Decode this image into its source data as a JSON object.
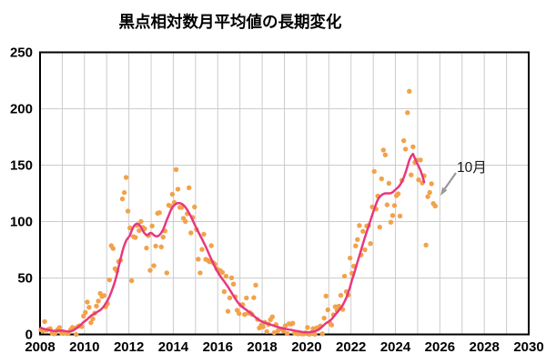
{
  "title": "黒点相対数月平均値の長期変化",
  "annotation": {
    "label": "10月"
  },
  "colors": {
    "background": "#ffffff",
    "scatter": "#F2A24B",
    "smoothed_line": "#E8387D",
    "grid": "#CCCCCC",
    "axis_frame": "#000000",
    "tick_text": "#000000",
    "annotation_text": "#1a1a1a",
    "annotation_arrow": "#999999"
  },
  "axes": {
    "x_tick_labels": [
      "2008",
      "2010",
      "2012",
      "2014",
      "2016",
      "2018",
      "2020",
      "2022",
      "2024",
      "2026",
      "2028",
      "2030"
    ],
    "y_tick_labels": [
      "0",
      "50",
      "100",
      "150",
      "200",
      "250"
    ]
  },
  "chart_data": {
    "type": "scatter",
    "title": "黒点相対数月平均値の長期変化",
    "xlabel": "",
    "ylabel": "",
    "xlim": [
      2008,
      2030
    ],
    "ylim": [
      0,
      250
    ],
    "x_grid_step_years": 1,
    "x_label_step_years": 2,
    "y_ticks": [
      0,
      50,
      100,
      150,
      200,
      250
    ],
    "grid": true,
    "legend": "none",
    "annotation": {
      "text": "10月",
      "points_to_month": "2025-10"
    },
    "series": [
      {
        "name": "monthly-mean-sunspot-number",
        "type": "scatter",
        "color": "#F2A24B",
        "start_month": "2008-01",
        "end_month": "2025-10",
        "monthly_values": [
          4.1,
          2.9,
          11.4,
          3.7,
          4.6,
          5.2,
          1.1,
          0.6,
          1.8,
          4.3,
          6.1,
          1.3,
          1.5,
          1.4,
          0.7,
          1.5,
          4.2,
          6.2,
          5.5,
          0.0,
          7.1,
          7.7,
          6.9,
          16.3,
          19.5,
          28.7,
          24.0,
          10.4,
          13.9,
          18.8,
          25.2,
          29.6,
          36.4,
          33.6,
          34.4,
          24.5,
          27.3,
          48.3,
          78.6,
          76.1,
          58.2,
          56.1,
          64.5,
          65.8,
          120.1,
          125.7,
          139.1,
          109.3,
          94.4,
          47.6,
          86.6,
          85.9,
          96.5,
          92.0,
          100.1,
          94.8,
          93.7,
          76.5,
          87.6,
          56.8,
          96.1,
          60.9,
          78.3,
          107.3,
          107.9,
          77.6,
          86.2,
          91.8,
          54.5,
          114.4,
          113.9,
          124.2,
          117.0,
          146.1,
          128.7,
          112.5,
          112.5,
          102.9,
          100.2,
          106.9,
          130.0,
          90.0,
          103.6,
          112.9,
          93.0,
          66.7,
          54.5,
          75.3,
          88.8,
          66.5,
          65.8,
          64.4,
          78.6,
          63.6,
          62.2,
          58.0,
          57.0,
          56.4,
          54.9,
          37.9,
          51.5,
          20.5,
          32.4,
          50.2,
          44.6,
          33.4,
          21.4,
          18.5,
          26.1,
          26.4,
          17.7,
          32.3,
          18.9,
          19.2,
          17.8,
          32.6,
          43.7,
          13.2,
          5.7,
          8.2,
          6.8,
          10.7,
          2.5,
          8.9,
          13.1,
          15.6,
          1.6,
          8.7,
          3.3,
          4.9,
          4.9,
          3.1,
          7.7,
          0.8,
          9.4,
          9.1,
          9.9,
          1.2,
          0.9,
          0.5,
          1.1,
          0.4,
          0.5,
          1.5,
          6.2,
          0.2,
          1.5,
          5.2,
          0.2,
          5.8,
          6.1,
          7.5,
          0.6,
          14.4,
          34.0,
          21.8,
          10.4,
          8.4,
          17.4,
          24.5,
          21.1,
          25.1,
          34.6,
          22.2,
          51.7,
          37.9,
          34.9,
          67.7,
          54.2,
          60.5,
          78.5,
          84.1,
          96.5,
          70.5,
          91.4,
          75.0,
          96.1,
          96.5,
          80.5,
          112.9,
          144.4,
          111.1,
          122.6,
          95.1,
          137.9,
          163.4,
          159.1,
          114.8,
          133.9,
          99.4,
          105.4,
          114.2,
          123.0,
          124.7,
          104.9,
          136.5,
          171.7,
          164.2,
          196.5,
          215.5,
          141.4,
          166.3,
          152.5,
          154.5,
          137.0,
          154.6,
          134.2,
          140.6,
          79.2,
          122.1,
          125.8,
          133.5,
          116.0,
          113.8
        ]
      },
      {
        "name": "smoothed-13-month-mean",
        "type": "line",
        "color": "#E8387D",
        "start_month": "2008-01",
        "end_month": "2025-04",
        "monthly_values": [
          5.9,
          5.2,
          4.7,
          4.3,
          4.0,
          3.6,
          3.3,
          3.2,
          3.1,
          3.2,
          3.3,
          3.4,
          3.3,
          3.0,
          2.7,
          2.6,
          2.8,
          3.2,
          4.2,
          5.3,
          6.5,
          7.8,
          9.2,
          11.0,
          12.0,
          13.5,
          15.0,
          16.5,
          17.5,
          18.5,
          19.5,
          20.5,
          21.5,
          23.0,
          25.0,
          27.5,
          30.0,
          33.5,
          37.5,
          42.0,
          47.0,
          53.0,
          60.0,
          67.0,
          73.5,
          79.0,
          83.0,
          85.5,
          87.5,
          92.0,
          95.5,
          97.5,
          98.3,
          97.5,
          95.0,
          92.0,
          89.5,
          88.0,
          88.5,
          90.0,
          89.5,
          88.0,
          87.0,
          87.0,
          88.0,
          90.0,
          93.0,
          97.0,
          101.5,
          105.5,
          109.5,
          112.5,
          114.5,
          115.8,
          116.4,
          116.4,
          115.8,
          114.6,
          112.8,
          110.5,
          107.7,
          104.5,
          101.1,
          97.6,
          94.2,
          90.9,
          87.7,
          84.5,
          81.2,
          77.8,
          74.2,
          70.5,
          66.8,
          63.2,
          59.8,
          56.7,
          53.9,
          51.4,
          49.1,
          46.9,
          44.6,
          42.2,
          39.6,
          36.9,
          34.2,
          31.6,
          29.2,
          27.1,
          25.4,
          24.0,
          22.8,
          21.7,
          20.5,
          19.2,
          17.8,
          16.4,
          15.0,
          13.7,
          12.6,
          11.7,
          10.9,
          10.3,
          9.7,
          9.2,
          8.7,
          8.2,
          7.6,
          7.0,
          6.5,
          6.0,
          5.6,
          5.2,
          4.9,
          4.6,
          4.3,
          4.0,
          3.7,
          3.4,
          3.1,
          2.8,
          2.5,
          2.2,
          2.0,
          1.8,
          1.8,
          1.9,
          2.1,
          2.4,
          2.8,
          3.4,
          4.3,
          5.5,
          7.0,
          8.5,
          10.0,
          11.0,
          12.0,
          13.5,
          15.5,
          17.5,
          19.5,
          21.5,
          23.5,
          26.0,
          29.0,
          32.5,
          37.0,
          42.0,
          48.0,
          53.0,
          58.5,
          64.0,
          69.5,
          75.0,
          80.5,
          86.0,
          91.0,
          96.0,
          101.0,
          106.0,
          111.0,
          115.5,
          119.5,
          122.0,
          123.5,
          124.5,
          125.0,
          125.0,
          125.0,
          125.2,
          126.0,
          127.5,
          129.0,
          130.5,
          132.5,
          135.5,
          139.0,
          143.5,
          149.0,
          154.5,
          158.0,
          160.0,
          156.0,
          152.5,
          149.0,
          145.5,
          141.0,
          135.0
        ]
      }
    ]
  }
}
